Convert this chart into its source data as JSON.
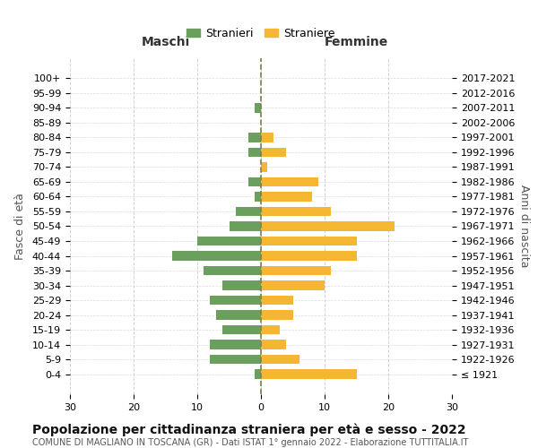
{
  "age_groups": [
    "100+",
    "95-99",
    "90-94",
    "85-89",
    "80-84",
    "75-79",
    "70-74",
    "65-69",
    "60-64",
    "55-59",
    "50-54",
    "45-49",
    "40-44",
    "35-39",
    "30-34",
    "25-29",
    "20-24",
    "15-19",
    "10-14",
    "5-9",
    "0-4"
  ],
  "birth_years": [
    "≤ 1921",
    "1922-1926",
    "1927-1931",
    "1932-1936",
    "1937-1941",
    "1942-1946",
    "1947-1951",
    "1952-1956",
    "1957-1961",
    "1962-1966",
    "1967-1971",
    "1972-1976",
    "1977-1981",
    "1982-1986",
    "1987-1991",
    "1992-1996",
    "1997-2001",
    "2002-2006",
    "2007-2011",
    "2012-2016",
    "2017-2021"
  ],
  "males": [
    0,
    0,
    1,
    0,
    2,
    2,
    0,
    2,
    1,
    4,
    5,
    10,
    14,
    9,
    6,
    8,
    7,
    6,
    8,
    8,
    1
  ],
  "females": [
    0,
    0,
    0,
    0,
    2,
    4,
    1,
    9,
    8,
    11,
    21,
    15,
    15,
    11,
    10,
    5,
    5,
    3,
    4,
    6,
    15
  ],
  "male_color": "#6a9f5e",
  "female_color": "#f5b731",
  "background_color": "#ffffff",
  "grid_color": "#cccccc",
  "dashed_line_color": "#7a8050",
  "title": "Popolazione per cittadinanza straniera per età e sesso - 2022",
  "subtitle": "COMUNE DI MAGLIANO IN TOSCANA (GR) - Dati ISTAT 1° gennaio 2022 - Elaborazione TUTTITALIA.IT",
  "xlabel_left": "Maschi",
  "xlabel_right": "Femmine",
  "ylabel_left": "Fasce di età",
  "ylabel_right": "Anni di nascita",
  "legend_male": "Stranieri",
  "legend_female": "Straniere",
  "xlim": 30,
  "title_fontsize": 10,
  "subtitle_fontsize": 7,
  "label_fontsize": 9,
  "tick_fontsize": 8,
  "legend_fontsize": 9
}
